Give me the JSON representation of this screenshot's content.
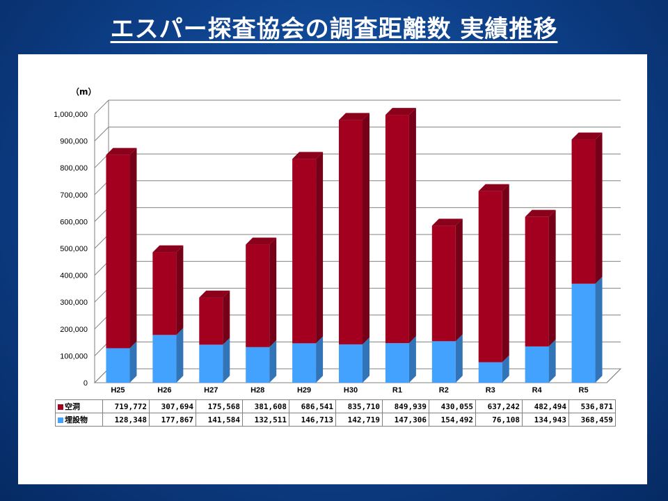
{
  "title": "エスパー探査協会の調査距離数 実績推移",
  "chart_data": {
    "type": "bar",
    "stacked": true,
    "unit_label": "（m）",
    "categories": [
      "H25",
      "H26",
      "H27",
      "H28",
      "H29",
      "H30",
      "R1",
      "R2",
      "R3",
      "R4",
      "R5"
    ],
    "series": [
      {
        "name": "埋設物",
        "color": "#44a2ff",
        "values": [
          128348,
          177867,
          141584,
          132511,
          146713,
          142719,
          147306,
          154492,
          76108,
          134943,
          368459
        ]
      },
      {
        "name": "空洞",
        "color": "#a30020",
        "values": [
          719772,
          307694,
          175568,
          381608,
          686541,
          835710,
          849939,
          430055,
          637242,
          482494,
          536871
        ]
      }
    ],
    "ylim": [
      0,
      1000000
    ],
    "y_ticks": [
      "0",
      "100,000",
      "200,000",
      "300,000",
      "400,000",
      "500,000",
      "600,000",
      "700,000",
      "800,000",
      "900,000",
      "1,000,000"
    ],
    "grid": true,
    "table": {
      "rows": [
        {
          "label": "空洞",
          "values": [
            "719,772",
            "307,694",
            "175,568",
            "381,608",
            "686,541",
            "835,710",
            "849,939",
            "430,055",
            "637,242",
            "482,494",
            "536,871"
          ]
        },
        {
          "label": "埋設物",
          "values": [
            "128,348",
            "177,867",
            "141,584",
            "132,511",
            "146,713",
            "142,719",
            "147,306",
            "154,492",
            "76,108",
            "134,943",
            "368,459"
          ]
        }
      ]
    }
  }
}
